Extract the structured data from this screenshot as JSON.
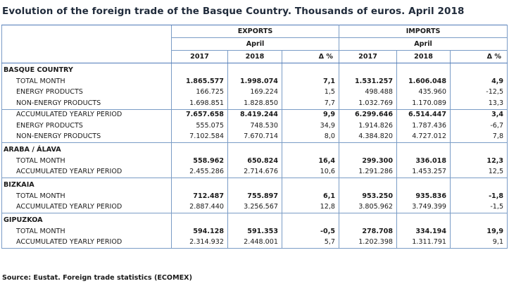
{
  "title": "Evolution of the foreign trade of the Basque Country. Thousands of euros. April 2018",
  "header": {
    "exports": "EXPORTS",
    "imports": "IMPORTS",
    "month": "April",
    "y2017": "2017",
    "y2018": "2018",
    "delta": "Δ %"
  },
  "sections": [
    {
      "name": "BASQUE COUNTRY",
      "rows": [
        {
          "label": "TOTAL MONTH",
          "bold": true,
          "e17": "1.865.577",
          "e18": "1.998.074",
          "ed": "7,1",
          "i17": "1.531.257",
          "i18": "1.606.048",
          "id": "4,9"
        },
        {
          "label": "ENERGY PRODUCTS",
          "e17": "166.725",
          "e18": "169.224",
          "ed": "1,5",
          "i17": "498.488",
          "i18": "435.960",
          "id": "-12,5"
        },
        {
          "label": "NON-ENERGY PRODUCTS",
          "e17": "1.698.851",
          "e18": "1.828.850",
          "ed": "7,7",
          "i17": "1.032.769",
          "i18": "1.170.089",
          "id": "13,3"
        },
        {
          "label": "ACCUMULATED YEARLY PERIOD",
          "bold": true,
          "e17": "7.657.658",
          "e18": "8.419.244",
          "ed": "9,9",
          "i17": "6.299.646",
          "i18": "6.514.447",
          "id": "3,4"
        },
        {
          "label": "ENERGY PRODUCTS",
          "e17": "555.075",
          "e18": "748.530",
          "ed": "34,9",
          "i17": "1.914.826",
          "i18": "1.787.436",
          "id": "-6,7"
        },
        {
          "label": "NON-ENERGY PRODUCTS",
          "e17": "7.102.584",
          "e18": "7.670.714",
          "ed": "8,0",
          "i17": "4.384.820",
          "i18": "4.727.012",
          "id": "7,8"
        }
      ]
    },
    {
      "name": "ARABA / ÁLAVA",
      "rows": [
        {
          "label": "TOTAL MONTH",
          "bold": true,
          "e17": "558.962",
          "e18": "650.824",
          "ed": "16,4",
          "i17": "299.300",
          "i18": "336.018",
          "id": "12,3"
        },
        {
          "label": "ACCUMULATED YEARLY PERIOD",
          "e17": "2.455.286",
          "e18": "2.714.676",
          "ed": "10,6",
          "i17": "1.291.286",
          "i18": "1.453.257",
          "id": "12,5"
        }
      ]
    },
    {
      "name": "BIZKAIA",
      "rows": [
        {
          "label": "TOTAL MONTH",
          "bold": true,
          "e17": "712.487",
          "e18": "755.897",
          "ed": "6,1",
          "i17": "953.250",
          "i18": "935.836",
          "id": "-1,8"
        },
        {
          "label": "ACCUMULATED YEARLY PERIOD",
          "e17": "2.887.440",
          "e18": "3.256.567",
          "ed": "12,8",
          "i17": "3.805.962",
          "i18": "3.749.399",
          "id": "-1,5"
        }
      ]
    },
    {
      "name": "GIPUZKOA",
      "rows": [
        {
          "label": "TOTAL MONTH",
          "bold": true,
          "e17": "594.128",
          "e18": "591.353",
          "ed": "-0,5",
          "i17": "278.708",
          "i18": "334.194",
          "id": "19,9"
        },
        {
          "label": "ACCUMULATED YEARLY PERIOD",
          "e17": "2.314.932",
          "e18": "2.448.001",
          "ed": "5,7",
          "i17": "1.202.398",
          "i18": "1.311.791",
          "id": "9,1"
        }
      ]
    }
  ],
  "source": "Source: Eustat. Foreign trade statistics (ECOMEX)"
}
